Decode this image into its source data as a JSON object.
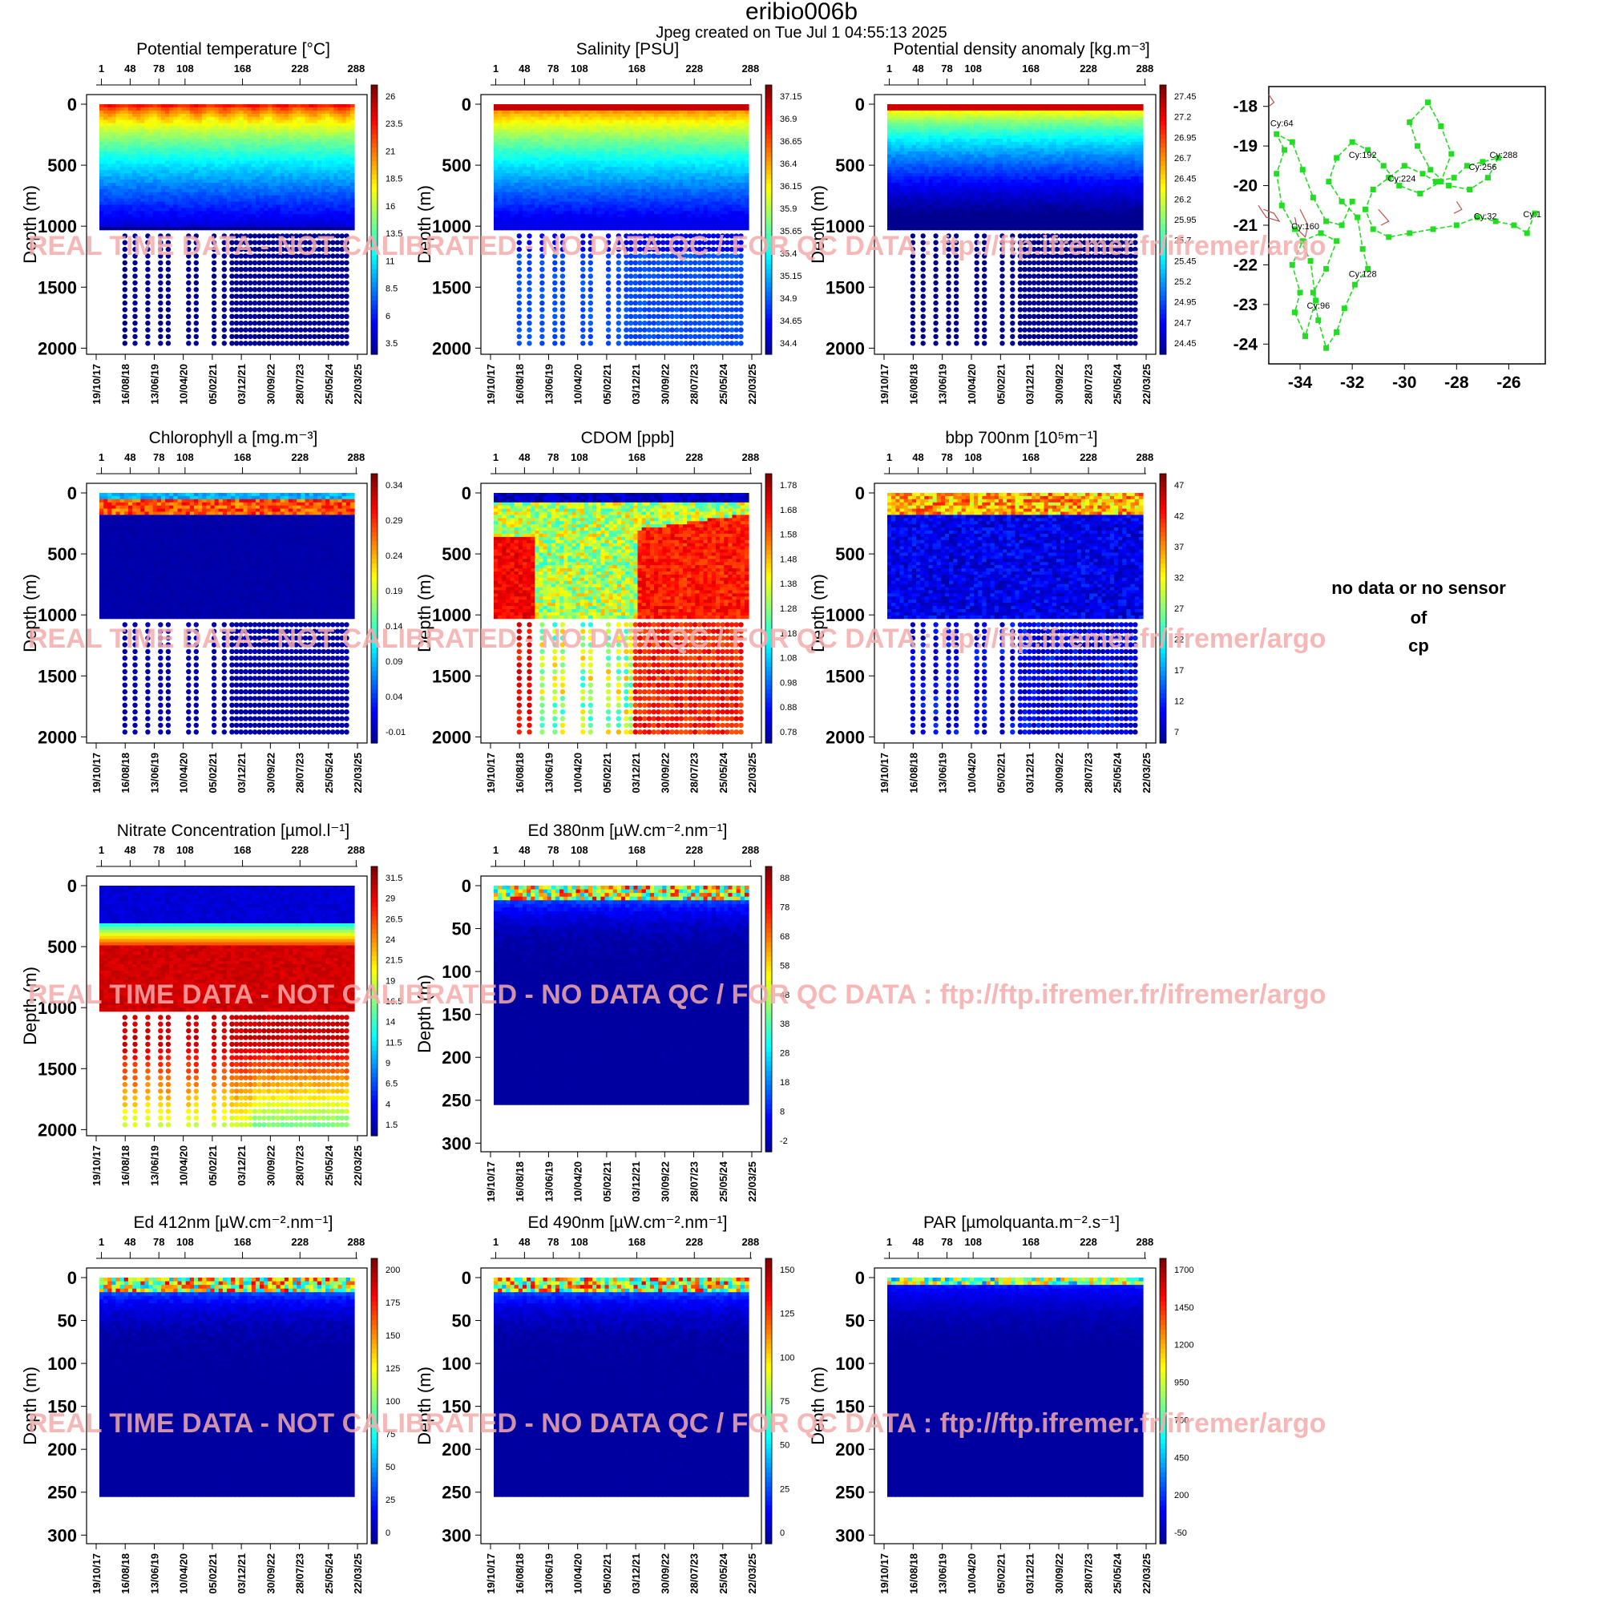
{
  "header": {
    "title": "eribio006b",
    "subtitle": "Jpeg created on  Tue Jul  1 04:55:13 2025"
  },
  "watermark": "REAL TIME DATA - NOT CALIBRATED - NO DATA QC  /  FOR QC DATA : ftp://ftp.ifremer.fr/ifremer/argo",
  "no_data_message": [
    "no data or no sensor",
    "of",
    "cp"
  ],
  "colors": {
    "float_track": "#22dd22",
    "coast_contour": "#c05050",
    "watermark": "#f4aaaa",
    "colormap": [
      "#00008f",
      "#0000ff",
      "#0080ff",
      "#00ffff",
      "#80ff80",
      "#ffff00",
      "#ff8000",
      "#ff0000",
      "#800000"
    ]
  },
  "chart_data": [
    {
      "type": "heatmap",
      "title": "Potential temperature [°C]",
      "ylabel": "Depth (m)",
      "top_axis_cycles": [
        "1",
        "48",
        "78",
        "108",
        "168",
        "228",
        "288"
      ],
      "x_dates": [
        "19/10/17",
        "16/08/18",
        "13/06/19",
        "10/04/20",
        "05/02/21",
        "03/12/21",
        "30/09/22",
        "28/07/23",
        "25/05/24",
        "22/03/25"
      ],
      "y_ticks": [
        "0",
        "500",
        "1000",
        "1500",
        "2000"
      ],
      "ylim": [
        2050,
        0
      ],
      "colorbar": [
        "26",
        "23.5",
        "21",
        "18.5",
        "16",
        "13.5",
        "11",
        "8.5",
        "6",
        "3.5"
      ],
      "profile": "temperature"
    },
    {
      "type": "heatmap",
      "title": "Salinity [PSU]",
      "ylabel": "Depth (m)",
      "top_axis_cycles": [
        "1",
        "48",
        "78",
        "108",
        "168",
        "228",
        "288"
      ],
      "x_dates": [
        "19/10/17",
        "16/08/18",
        "13/06/19",
        "10/04/20",
        "05/02/21",
        "03/12/21",
        "30/09/22",
        "28/07/23",
        "25/05/24",
        "22/03/25"
      ],
      "y_ticks": [
        "0",
        "500",
        "1000",
        "1500",
        "2000"
      ],
      "ylim": [
        2050,
        0
      ],
      "colorbar": [
        "37.15",
        "36.9",
        "36.65",
        "36.4",
        "36.15",
        "35.9",
        "35.65",
        "35.4",
        "35.15",
        "34.9",
        "34.65",
        "34.4"
      ],
      "profile": "salinity"
    },
    {
      "type": "heatmap",
      "title": "Potential density anomaly [kg.m⁻³]",
      "ylabel": "Depth (m)",
      "top_axis_cycles": [
        "1",
        "48",
        "78",
        "108",
        "168",
        "228",
        "288"
      ],
      "x_dates": [
        "19/10/17",
        "16/08/18",
        "13/06/19",
        "10/04/20",
        "05/02/21",
        "03/12/21",
        "30/09/22",
        "28/07/23",
        "25/05/24",
        "22/03/25"
      ],
      "y_ticks": [
        "0",
        "500",
        "1000",
        "1500",
        "2000"
      ],
      "ylim": [
        2050,
        0
      ],
      "colorbar": [
        "27.45",
        "27.2",
        "26.95",
        "26.7",
        "26.45",
        "26.2",
        "25.95",
        "25.7",
        "25.45",
        "25.2",
        "24.95",
        "24.7",
        "24.45"
      ],
      "profile": "density"
    },
    {
      "type": "scatter",
      "title": "",
      "x_ticks": [
        "-34",
        "-32",
        "-30",
        "-28",
        "-26"
      ],
      "y_ticks": [
        "-18",
        "-19",
        "-20",
        "-21",
        "-22",
        "-23",
        "-24"
      ],
      "xlim": [
        -35.2,
        -24.6
      ],
      "ylim": [
        -24.5,
        -17.5
      ],
      "annotations": [
        {
          "text": "Cy:1",
          "lon": -25.1,
          "lat": -20.8
        },
        {
          "text": "Cy:32",
          "lon": -26.9,
          "lat": -20.85
        },
        {
          "text": "Cy:64",
          "lon": -34.7,
          "lat": -18.5
        },
        {
          "text": "Cy:96",
          "lon": -33.3,
          "lat": -23.1
        },
        {
          "text": "Cy:128",
          "lon": -31.6,
          "lat": -22.3
        },
        {
          "text": "Cy:160",
          "lon": -33.8,
          "lat": -21.1
        },
        {
          "text": "Cy:192",
          "lon": -31.6,
          "lat": -19.3
        },
        {
          "text": "Cy:224",
          "lon": -30.1,
          "lat": -19.9
        },
        {
          "text": "Cy:256",
          "lon": -27.0,
          "lat": -19.6
        },
        {
          "text": "Cy:288",
          "lon": -26.2,
          "lat": -19.3
        }
      ],
      "track": [
        [
          -25.0,
          -20.7
        ],
        [
          -25.3,
          -21.2
        ],
        [
          -25.8,
          -21.0
        ],
        [
          -26.5,
          -20.9
        ],
        [
          -27.2,
          -20.8
        ],
        [
          -28.0,
          -21.0
        ],
        [
          -28.9,
          -21.1
        ],
        [
          -29.8,
          -21.2
        ],
        [
          -30.6,
          -21.3
        ],
        [
          -31.2,
          -21.1
        ],
        [
          -31.5,
          -20.6
        ],
        [
          -31.2,
          -20.1
        ],
        [
          -30.6,
          -19.8
        ],
        [
          -30.0,
          -19.5
        ],
        [
          -29.3,
          -19.7
        ],
        [
          -28.8,
          -19.9
        ],
        [
          -28.1,
          -19.8
        ],
        [
          -27.6,
          -19.5
        ],
        [
          -27.0,
          -19.4
        ],
        [
          -26.4,
          -19.3
        ],
        [
          -26.8,
          -19.8
        ],
        [
          -27.5,
          -20.1
        ],
        [
          -28.3,
          -20.0
        ],
        [
          -29.0,
          -19.6
        ],
        [
          -29.5,
          -19.0
        ],
        [
          -29.8,
          -18.4
        ],
        [
          -29.1,
          -17.9
        ],
        [
          -28.6,
          -18.5
        ],
        [
          -28.2,
          -19.2
        ],
        [
          -28.6,
          -19.9
        ],
        [
          -29.4,
          -20.2
        ],
        [
          -30.2,
          -20.0
        ],
        [
          -30.8,
          -19.5
        ],
        [
          -31.4,
          -19.1
        ],
        [
          -32.0,
          -18.9
        ],
        [
          -32.6,
          -19.3
        ],
        [
          -32.9,
          -19.9
        ],
        [
          -32.4,
          -20.4
        ],
        [
          -31.8,
          -20.8
        ],
        [
          -31.6,
          -21.6
        ],
        [
          -31.4,
          -22.1
        ],
        [
          -31.9,
          -22.5
        ],
        [
          -32.3,
          -23.1
        ],
        [
          -32.6,
          -23.7
        ],
        [
          -33.0,
          -24.1
        ],
        [
          -33.3,
          -23.4
        ],
        [
          -33.5,
          -22.7
        ],
        [
          -33.0,
          -22.1
        ],
        [
          -32.6,
          -21.4
        ],
        [
          -33.2,
          -21.2
        ],
        [
          -33.9,
          -21.4
        ],
        [
          -34.3,
          -22.0
        ],
        [
          -34.0,
          -22.7
        ],
        [
          -34.2,
          -23.2
        ],
        [
          -33.8,
          -23.8
        ],
        [
          -33.4,
          -22.9
        ],
        [
          -33.6,
          -21.9
        ],
        [
          -34.2,
          -21.1
        ],
        [
          -34.7,
          -20.5
        ],
        [
          -34.9,
          -19.7
        ],
        [
          -34.6,
          -19.1
        ],
        [
          -34.9,
          -18.7
        ],
        [
          -34.3,
          -18.9
        ],
        [
          -33.9,
          -19.6
        ],
        [
          -33.5,
          -20.3
        ],
        [
          -33.0,
          -20.9
        ],
        [
          -32.4,
          -21.0
        ],
        [
          -32.0,
          -20.4
        ]
      ],
      "coast": [
        [
          [
            -35.6,
            -20.5
          ],
          [
            -35.3,
            -20.8
          ],
          [
            -34.8,
            -20.9
          ],
          [
            -35.0,
            -20.7
          ],
          [
            -35.4,
            -20.6
          ]
        ],
        [
          [
            -34.0,
            -20.6
          ],
          [
            -33.7,
            -21.0
          ],
          [
            -33.8,
            -21.3
          ],
          [
            -34.1,
            -21.1
          ],
          [
            -34.2,
            -20.8
          ]
        ],
        [
          [
            -31.0,
            -20.6
          ],
          [
            -30.6,
            -20.9
          ],
          [
            -30.9,
            -21.0
          ]
        ],
        [
          [
            -28.0,
            -20.4
          ],
          [
            -27.8,
            -20.6
          ],
          [
            -28.1,
            -20.7
          ]
        ],
        [
          [
            -35.2,
            -17.7
          ],
          [
            -35.0,
            -17.9
          ],
          [
            -35.2,
            -18.0
          ]
        ]
      ]
    },
    {
      "type": "heatmap",
      "title": "Chlorophyll a [mg.m⁻³]",
      "ylabel": "Depth (m)",
      "top_axis_cycles": [
        "1",
        "48",
        "78",
        "108",
        "168",
        "228",
        "288"
      ],
      "x_dates": [
        "19/10/17",
        "16/08/18",
        "13/06/19",
        "10/04/20",
        "05/02/21",
        "03/12/21",
        "30/09/22",
        "28/07/23",
        "25/05/24",
        "22/03/25"
      ],
      "y_ticks": [
        "0",
        "500",
        "1000",
        "1500",
        "2000"
      ],
      "ylim": [
        2050,
        0
      ],
      "colorbar": [
        "0.34",
        "0.29",
        "0.24",
        "0.19",
        "0.14",
        "0.09",
        "0.04",
        "-0.01"
      ],
      "profile": "chlorophyll"
    },
    {
      "type": "heatmap",
      "title": "CDOM  [ppb]",
      "ylabel": "Depth (m)",
      "top_axis_cycles": [
        "1",
        "48",
        "78",
        "108",
        "168",
        "228",
        "288"
      ],
      "x_dates": [
        "19/10/17",
        "16/08/18",
        "13/06/19",
        "10/04/20",
        "05/02/21",
        "03/12/21",
        "30/09/22",
        "28/07/23",
        "25/05/24",
        "22/03/25"
      ],
      "y_ticks": [
        "0",
        "500",
        "1000",
        "1500",
        "2000"
      ],
      "ylim": [
        2050,
        0
      ],
      "colorbar": [
        "1.78",
        "1.68",
        "1.58",
        "1.48",
        "1.38",
        "1.28",
        "1.18",
        "1.08",
        "0.98",
        "0.88",
        "0.78"
      ],
      "profile": "cdom"
    },
    {
      "type": "heatmap",
      "title": "bbp 700nm [10⁵m⁻¹]",
      "ylabel": "Depth (m)",
      "top_axis_cycles": [
        "1",
        "48",
        "78",
        "108",
        "168",
        "228",
        "288"
      ],
      "x_dates": [
        "19/10/17",
        "16/08/18",
        "13/06/19",
        "10/04/20",
        "05/02/21",
        "03/12/21",
        "30/09/22",
        "28/07/23",
        "25/05/24",
        "22/03/25"
      ],
      "y_ticks": [
        "0",
        "500",
        "1000",
        "1500",
        "2000"
      ],
      "ylim": [
        2050,
        0
      ],
      "colorbar": [
        "47",
        "42",
        "37",
        "32",
        "27",
        "22",
        "17",
        "12",
        "7"
      ],
      "profile": "bbp"
    },
    {
      "type": "heatmap",
      "title": "Nitrate Concentration [µmol.l⁻¹]",
      "ylabel": "Depth (m)",
      "top_axis_cycles": [
        "1",
        "48",
        "78",
        "108",
        "168",
        "228",
        "288"
      ],
      "x_dates": [
        "19/10/17",
        "16/08/18",
        "13/06/19",
        "10/04/20",
        "05/02/21",
        "03/12/21",
        "30/09/22",
        "28/07/23",
        "25/05/24",
        "22/03/25"
      ],
      "y_ticks": [
        "0",
        "500",
        "1000",
        "1500",
        "2000"
      ],
      "ylim": [
        2050,
        0
      ],
      "colorbar": [
        "31.5",
        "29",
        "26.5",
        "24",
        "21.5",
        "19",
        "16.5",
        "14",
        "11.5",
        "9",
        "6.5",
        "4",
        "1.5"
      ],
      "profile": "nitrate"
    },
    {
      "type": "heatmap",
      "title": "Ed 380nm [µW.cm⁻².nm⁻¹]",
      "ylabel": "Depth (m)",
      "top_axis_cycles": [
        "1",
        "48",
        "78",
        "108",
        "168",
        "228",
        "288"
      ],
      "x_dates": [
        "19/10/17",
        "16/08/18",
        "13/06/19",
        "10/04/20",
        "05/02/21",
        "03/12/21",
        "30/09/22",
        "28/07/23",
        "25/05/24",
        "22/03/25"
      ],
      "y_ticks": [
        "0",
        "50",
        "100",
        "150",
        "200",
        "250",
        "300"
      ],
      "ylim": [
        310,
        0
      ],
      "colorbar": [
        "88",
        "78",
        "68",
        "58",
        "48",
        "38",
        "28",
        "18",
        "8",
        "-2"
      ],
      "profile": "light"
    },
    {
      "type": "heatmap",
      "title": "Ed 412nm [µW.cm⁻².nm⁻¹]",
      "ylabel": "Depth (m)",
      "top_axis_cycles": [
        "1",
        "48",
        "78",
        "108",
        "168",
        "228",
        "288"
      ],
      "x_dates": [
        "19/10/17",
        "16/08/18",
        "13/06/19",
        "10/04/20",
        "05/02/21",
        "03/12/21",
        "30/09/22",
        "28/07/23",
        "25/05/24",
        "22/03/25"
      ],
      "y_ticks": [
        "0",
        "50",
        "100",
        "150",
        "200",
        "250",
        "300"
      ],
      "ylim": [
        310,
        0
      ],
      "colorbar": [
        "200",
        "175",
        "150",
        "125",
        "100",
        "75",
        "50",
        "25",
        "0"
      ],
      "profile": "light"
    },
    {
      "type": "heatmap",
      "title": "Ed 490nm [µW.cm⁻².nm⁻¹]",
      "ylabel": "Depth (m)",
      "top_axis_cycles": [
        "1",
        "48",
        "78",
        "108",
        "168",
        "228",
        "288"
      ],
      "x_dates": [
        "19/10/17",
        "16/08/18",
        "13/06/19",
        "10/04/20",
        "05/02/21",
        "03/12/21",
        "30/09/22",
        "28/07/23",
        "25/05/24",
        "22/03/25"
      ],
      "y_ticks": [
        "0",
        "50",
        "100",
        "150",
        "200",
        "250",
        "300"
      ],
      "ylim": [
        310,
        0
      ],
      "colorbar": [
        "150",
        "125",
        "100",
        "75",
        "50",
        "25",
        "0"
      ],
      "profile": "light"
    },
    {
      "type": "heatmap",
      "title": "PAR [µmolquanta.m⁻².s⁻¹]",
      "ylabel": "Depth (m)",
      "top_axis_cycles": [
        "1",
        "48",
        "78",
        "108",
        "168",
        "228",
        "288"
      ],
      "x_dates": [
        "19/10/17",
        "16/08/18",
        "13/06/19",
        "10/04/20",
        "05/02/21",
        "03/12/21",
        "30/09/22",
        "28/07/23",
        "25/05/24",
        "22/03/25"
      ],
      "y_ticks": [
        "0",
        "50",
        "100",
        "150",
        "200",
        "250",
        "300"
      ],
      "ylim": [
        310,
        0
      ],
      "colorbar": [
        "1700",
        "1450",
        "1200",
        "950",
        "700",
        "450",
        "200",
        "-50"
      ],
      "profile": "par"
    }
  ]
}
